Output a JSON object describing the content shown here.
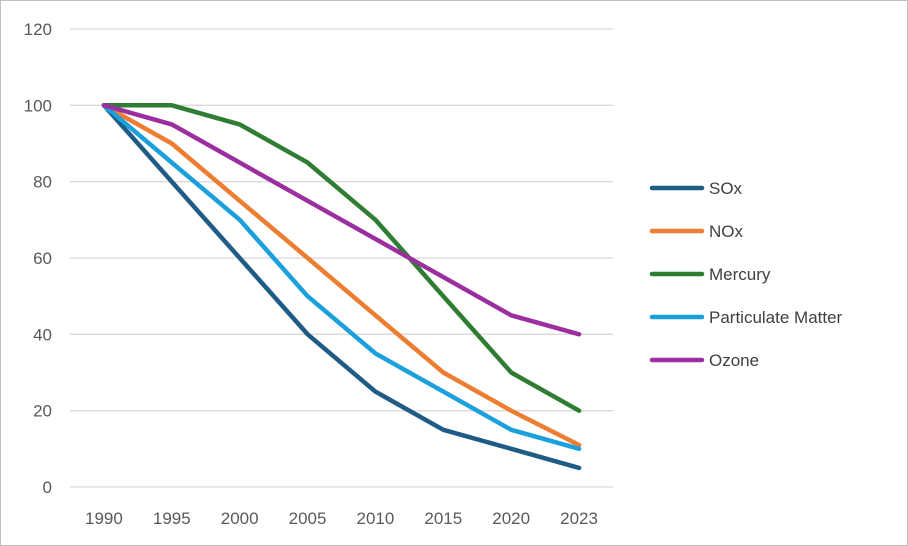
{
  "chart_data": {
    "type": "line",
    "title": "",
    "xlabel": "",
    "ylabel": "",
    "x": [
      "1990",
      "1995",
      "2000",
      "2005",
      "2010",
      "2015",
      "2020",
      "2023"
    ],
    "ylim": [
      0,
      120
    ],
    "y_ticks": [
      0,
      20,
      40,
      60,
      80,
      100,
      120
    ],
    "grid": true,
    "legend_position": "right",
    "series": [
      {
        "name": "SOx",
        "color": "#1f5c85",
        "values": [
          100,
          80,
          60,
          40,
          25,
          15,
          10,
          5
        ]
      },
      {
        "name": "NOx",
        "color": "#ed7d31",
        "values": [
          100,
          90,
          75,
          60,
          45,
          30,
          20,
          11
        ]
      },
      {
        "name": "Mercury",
        "color": "#2e7d32",
        "values": [
          100,
          100,
          95,
          85,
          70,
          50,
          30,
          20
        ]
      },
      {
        "name": "Particulate Matter",
        "color": "#1ca0dc",
        "values": [
          100,
          85,
          70,
          50,
          35,
          25,
          15,
          10
        ]
      },
      {
        "name": "Ozone",
        "color": "#9b2f9f",
        "values": [
          100,
          95,
          85,
          75,
          65,
          55,
          45,
          40
        ]
      }
    ]
  }
}
